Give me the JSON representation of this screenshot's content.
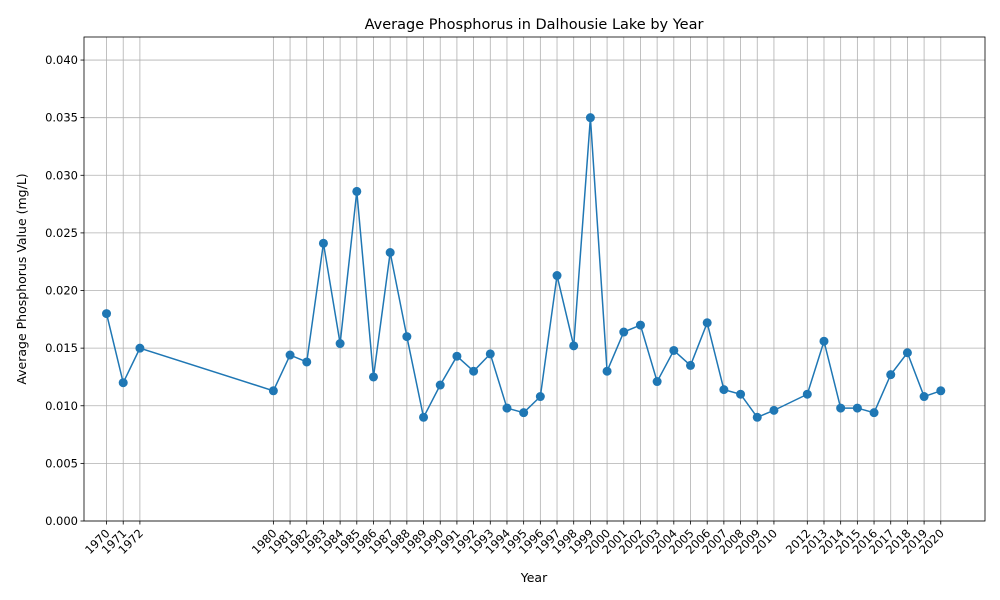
{
  "chart_data": {
    "type": "line",
    "title": "Average Phosphorus in Dalhousie Lake by Year",
    "xlabel": "Year",
    "ylabel": "Average Phosphorus Value (mg/L)",
    "x": [
      1970,
      1971,
      1972,
      1980,
      1981,
      1982,
      1983,
      1984,
      1985,
      1986,
      1987,
      1988,
      1989,
      1990,
      1991,
      1992,
      1993,
      1994,
      1995,
      1996,
      1997,
      1998,
      1999,
      2000,
      2001,
      2002,
      2003,
      2004,
      2005,
      2006,
      2007,
      2008,
      2009,
      2010,
      2012,
      2013,
      2014,
      2015,
      2016,
      2017,
      2018,
      2019,
      2020
    ],
    "values": [
      0.018,
      0.012,
      0.015,
      0.0113,
      0.0144,
      0.0138,
      0.0241,
      0.0154,
      0.0286,
      0.0125,
      0.0233,
      0.016,
      0.009,
      0.0118,
      0.0143,
      0.013,
      0.0145,
      0.0098,
      0.0094,
      0.0108,
      0.0213,
      0.0152,
      0.035,
      0.013,
      0.0164,
      0.017,
      0.0121,
      0.0148,
      0.0135,
      0.0172,
      0.0114,
      0.011,
      0.009,
      0.0096,
      0.011,
      0.0156,
      0.0098,
      0.0098,
      0.0094,
      0.0127,
      0.0146,
      0.0108,
      0.0113
    ],
    "x_tick_labels": [
      "1970",
      "1971",
      "1972",
      "1980",
      "1981",
      "1982",
      "1983",
      "1984",
      "1985",
      "1986",
      "1987",
      "1988",
      "1989",
      "1990",
      "1991",
      "1992",
      "1993",
      "1994",
      "1995",
      "1996",
      "1997",
      "1998",
      "1999",
      "2000",
      "2001",
      "2002",
      "2003",
      "2004",
      "2005",
      "2006",
      "2007",
      "2008",
      "2009",
      "2010",
      "2012",
      "2013",
      "2014",
      "2015",
      "2016",
      "2017",
      "2018",
      "2019",
      "2020"
    ],
    "y_ticks": [
      0.0,
      0.005,
      0.01,
      0.015,
      0.02,
      0.025,
      0.03,
      0.035,
      0.04
    ],
    "y_tick_labels": [
      "0.000",
      "0.005",
      "0.010",
      "0.015",
      "0.020",
      "0.025",
      "0.030",
      "0.035",
      "0.040"
    ],
    "xlim": [
      1968.65,
      2022.65
    ],
    "ylim": [
      0,
      0.042
    ],
    "grid": true,
    "color": "#1f77b4"
  }
}
